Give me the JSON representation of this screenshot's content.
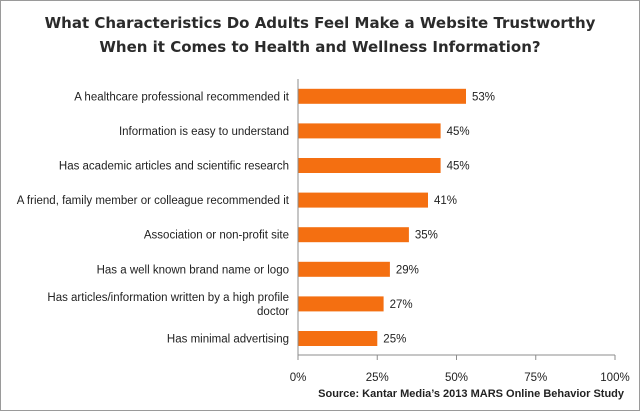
{
  "chart_data": {
    "type": "bar",
    "orientation": "horizontal",
    "title_lines": [
      "What Characteristics Do Adults Feel Make a Website Trustworthy",
      "When it Comes to Health and Wellness Information?"
    ],
    "categories": [
      "A healthcare professional recommended it",
      "Information is easy to understand",
      "Has academic articles and scientific research",
      "A friend, family member or colleague recommended it",
      "Association or non-profit site",
      "Has a well known brand name or logo",
      "Has articles/information written by a high profile doctor",
      "Has minimal advertising"
    ],
    "category_lines": [
      [
        "A healthcare professional recommended it"
      ],
      [
        "Information is easy to understand"
      ],
      [
        "Has academic articles and scientific research"
      ],
      [
        "A friend, family member or colleague recommended it"
      ],
      [
        "Association or non-profit site"
      ],
      [
        "Has a well known brand name or logo"
      ],
      [
        "Has articles/information written by a high profile",
        "doctor"
      ],
      [
        "Has minimal advertising"
      ]
    ],
    "values": [
      53,
      45,
      45,
      41,
      35,
      29,
      27,
      25
    ],
    "value_labels": [
      "53%",
      "45%",
      "45%",
      "41%",
      "35%",
      "29%",
      "27%",
      "25%"
    ],
    "xlim": [
      0,
      100
    ],
    "x_ticks": [
      0,
      25,
      50,
      75,
      100
    ],
    "x_tick_labels": [
      "0%",
      "25%",
      "50%",
      "75%",
      "100%"
    ],
    "grid": false,
    "bar_color": "#f46f11",
    "source": "Source: Kantar Media’s 2013 MARS Online Behavior Study"
  }
}
